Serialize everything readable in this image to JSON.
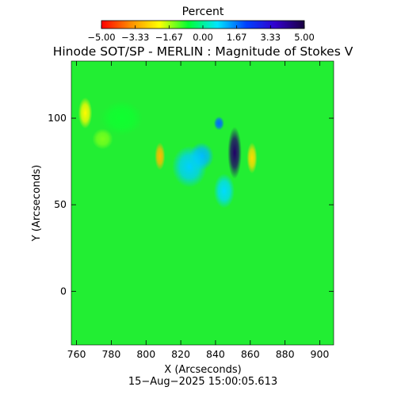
{
  "chart_data": {
    "type": "heatmap",
    "title": "Hinode SOT/SP - MERLIN : Magnitude of Stokes V",
    "xlabel": "X (Arcseconds)",
    "ylabel": "Y (Arcseconds)",
    "xlim": [
      757,
      908
    ],
    "ylim": [
      -31,
      133
    ],
    "x_ticks": [
      760,
      780,
      800,
      820,
      840,
      860,
      880,
      900
    ],
    "y_ticks": [
      0,
      50,
      100
    ],
    "colorbar": {
      "label": "Percent",
      "range": [
        -5.0,
        5.0
      ],
      "tick_labels": [
        "-5.00",
        "-3.33",
        "-1.67",
        "0.00",
        "1.67",
        "3.33",
        "5.00"
      ],
      "colormap": [
        "#ff0000",
        "#ff8c00",
        "#ffff00",
        "#00ff33",
        "#00e5ff",
        "#0040ff",
        "#3300cc",
        "#1a0040"
      ]
    },
    "background_color": "#22ee33",
    "features": [
      {
        "x": 808,
        "y": 78,
        "value": -3.0,
        "rx": 3,
        "ry": 8
      },
      {
        "x": 861,
        "y": 77,
        "value": -2.6,
        "rx": 3,
        "ry": 9
      },
      {
        "x": 851,
        "y": 80,
        "value": 4.6,
        "rx": 4,
        "ry": 15
      },
      {
        "x": 842,
        "y": 97,
        "value": 1.8,
        "rx": 3,
        "ry": 4
      },
      {
        "x": 832,
        "y": 78,
        "value": 1.1,
        "rx": 7,
        "ry": 8
      },
      {
        "x": 765,
        "y": 103,
        "value": -2.2,
        "rx": 4,
        "ry": 9
      },
      {
        "x": 775,
        "y": 88,
        "value": -1.4,
        "rx": 6,
        "ry": 6
      },
      {
        "x": 786,
        "y": 100,
        "value": -0.8,
        "rx": 12,
        "ry": 10
      },
      {
        "x": 825,
        "y": 72,
        "value": 0.9,
        "rx": 10,
        "ry": 12
      },
      {
        "x": 845,
        "y": 58,
        "value": 0.8,
        "rx": 6,
        "ry": 10
      }
    ],
    "footer": "15-Aug-2025 15:00:05.613"
  }
}
